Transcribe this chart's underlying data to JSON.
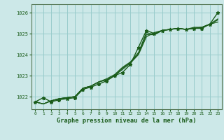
{
  "background_color": "#cce8e8",
  "grid_color": "#99cccc",
  "line_color": "#1a5c1a",
  "marker_color": "#1a5c1a",
  "title": "Graphe pression niveau de la mer (hPa)",
  "xlim": [
    -0.5,
    23.5
  ],
  "ylim": [
    1021.4,
    1026.4
  ],
  "yticks": [
    1022,
    1023,
    1024,
    1025,
    1026
  ],
  "xticks": [
    0,
    1,
    2,
    3,
    4,
    5,
    6,
    7,
    8,
    9,
    10,
    11,
    12,
    13,
    14,
    15,
    16,
    17,
    18,
    19,
    20,
    21,
    22,
    23
  ],
  "series": [
    {
      "y": [
        1021.75,
        1021.95,
        1021.75,
        1021.85,
        1021.9,
        1021.95,
        1022.35,
        1022.45,
        1022.6,
        1022.75,
        1023.0,
        1023.15,
        1023.55,
        1024.35,
        1025.15,
        1025.0,
        1025.15,
        1025.2,
        1025.25,
        1025.2,
        1025.25,
        1025.25,
        1025.45,
        1026.0
      ],
      "marker": true,
      "lw": 1.0
    },
    {
      "y": [
        1021.75,
        1021.65,
        1021.8,
        1021.9,
        1021.95,
        1022.0,
        1022.4,
        1022.5,
        1022.7,
        1022.8,
        1023.0,
        1023.3,
        1023.6,
        1024.0,
        1024.85,
        1025.05,
        1025.15,
        1025.2,
        1025.25,
        1025.2,
        1025.25,
        1025.3,
        1025.45,
        1025.55
      ],
      "marker": false,
      "lw": 0.9
    },
    {
      "y": [
        1021.75,
        1021.65,
        1021.8,
        1021.9,
        1021.95,
        1022.0,
        1022.4,
        1022.5,
        1022.7,
        1022.8,
        1023.0,
        1023.35,
        1023.65,
        1024.1,
        1025.05,
        1024.95,
        1025.15,
        1025.2,
        1025.25,
        1025.2,
        1025.25,
        1025.3,
        1025.45,
        1025.65
      ],
      "marker": false,
      "lw": 0.9
    },
    {
      "y": [
        1021.75,
        1021.65,
        1021.8,
        1021.9,
        1021.95,
        1022.0,
        1022.4,
        1022.5,
        1022.7,
        1022.85,
        1023.05,
        1023.4,
        1023.65,
        1024.05,
        1024.95,
        1024.95,
        1025.15,
        1025.2,
        1025.25,
        1025.2,
        1025.3,
        1025.3,
        1025.45,
        1025.7
      ],
      "marker": false,
      "lw": 0.9
    }
  ]
}
